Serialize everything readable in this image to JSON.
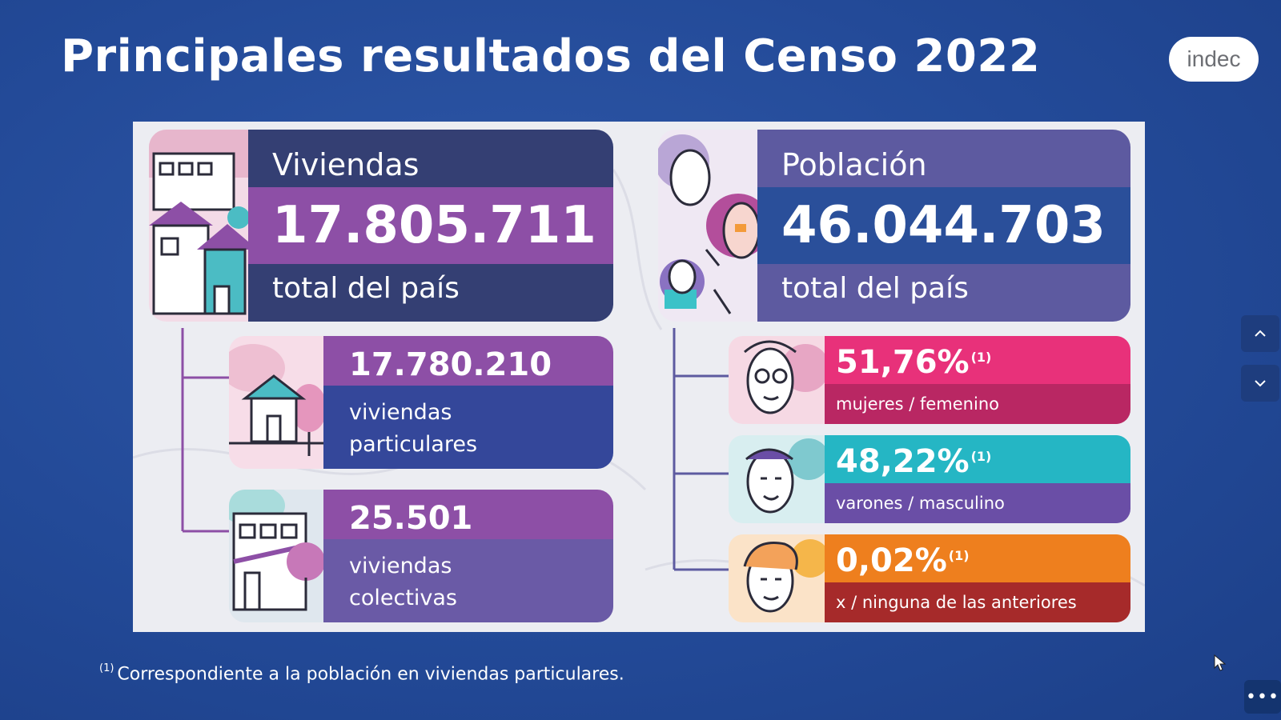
{
  "slide": {
    "title": "Principales resultados del Censo 2022",
    "logo_text": "indec"
  },
  "viviendas": {
    "header": "Viviendas",
    "total": "17.805.711",
    "footer": "total del país",
    "particulares": {
      "value": "17.780.210",
      "label_line1": "viviendas",
      "label_line2": "particulares"
    },
    "colectivas": {
      "value": "25.501",
      "label_line1": "viviendas",
      "label_line2": "colectivas"
    }
  },
  "poblacion": {
    "header": "Población",
    "total": "46.044.703",
    "footer": "total del país",
    "femenino": {
      "value": "51,76%",
      "note": "(1)",
      "label": "mujeres / femenino"
    },
    "masculino": {
      "value": "48,22%",
      "note": "(1)",
      "label": "varones / masculino"
    },
    "ninguna": {
      "value": "0,02%",
      "note": "(1)",
      "label": "x / ninguna de las anteriores"
    }
  },
  "footnote": {
    "marker": "(1)",
    "text": "Correspondiente a la población en viviendas particulares."
  },
  "controls": {
    "up_icon": "chevron-up-icon",
    "down_icon": "chevron-down-icon",
    "more_icon": "more-icon",
    "more_label": "•••"
  },
  "colors": {
    "background": "#234a98",
    "panel": "#ecedf2",
    "purple": "#8d4fa6",
    "navy": "#343f73",
    "pink": "#e8317a",
    "teal": "#25b6c4",
    "orange": "#ee7f1e"
  }
}
